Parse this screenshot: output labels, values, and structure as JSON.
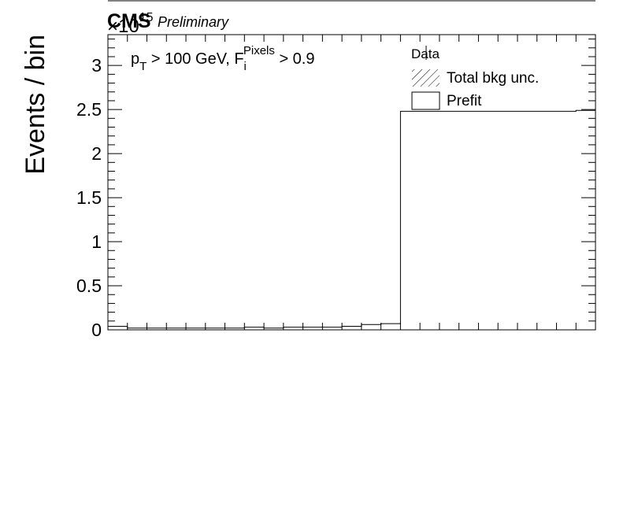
{
  "header": {
    "experiment": "CMS",
    "status": "Preliminary",
    "exponent_base": "×10",
    "exponent_power": "15"
  },
  "chart_data": {
    "type": "bar",
    "ylabel": "Events / bin",
    "xlabel": "",
    "ylim": [
      0,
      3.35
    ],
    "y_multiplier": "1e15",
    "y_ticks": [
      "0",
      "0.5",
      "1",
      "1.5",
      "2",
      "2.5",
      "3"
    ],
    "annotation": {
      "pt_part": "p",
      "pt_sub": "T",
      "mid_part": " > 100 GeV, F",
      "f_sub": "i",
      "f_sup": "Pixels",
      "end_part": " > 0.9"
    },
    "legend": {
      "placement": "top-right",
      "entries": [
        {
          "label": "Data",
          "style": "marker"
        },
        {
          "label": "Total bkg unc.",
          "style": "hatched"
        },
        {
          "label": "Prefit",
          "style": "box"
        }
      ]
    },
    "n_bins": 25,
    "values": [
      0.04,
      0.02,
      0.02,
      0.02,
      0.02,
      0.02,
      0.02,
      0.03,
      0.02,
      0.03,
      0.03,
      0.03,
      0.04,
      0.06,
      0.07,
      2.48,
      2.48,
      2.48,
      2.48,
      2.48,
      2.48,
      2.48,
      2.48,
      2.48,
      2.49
    ],
    "colors": {
      "line": "#000000",
      "background": "#ffffff"
    }
  }
}
